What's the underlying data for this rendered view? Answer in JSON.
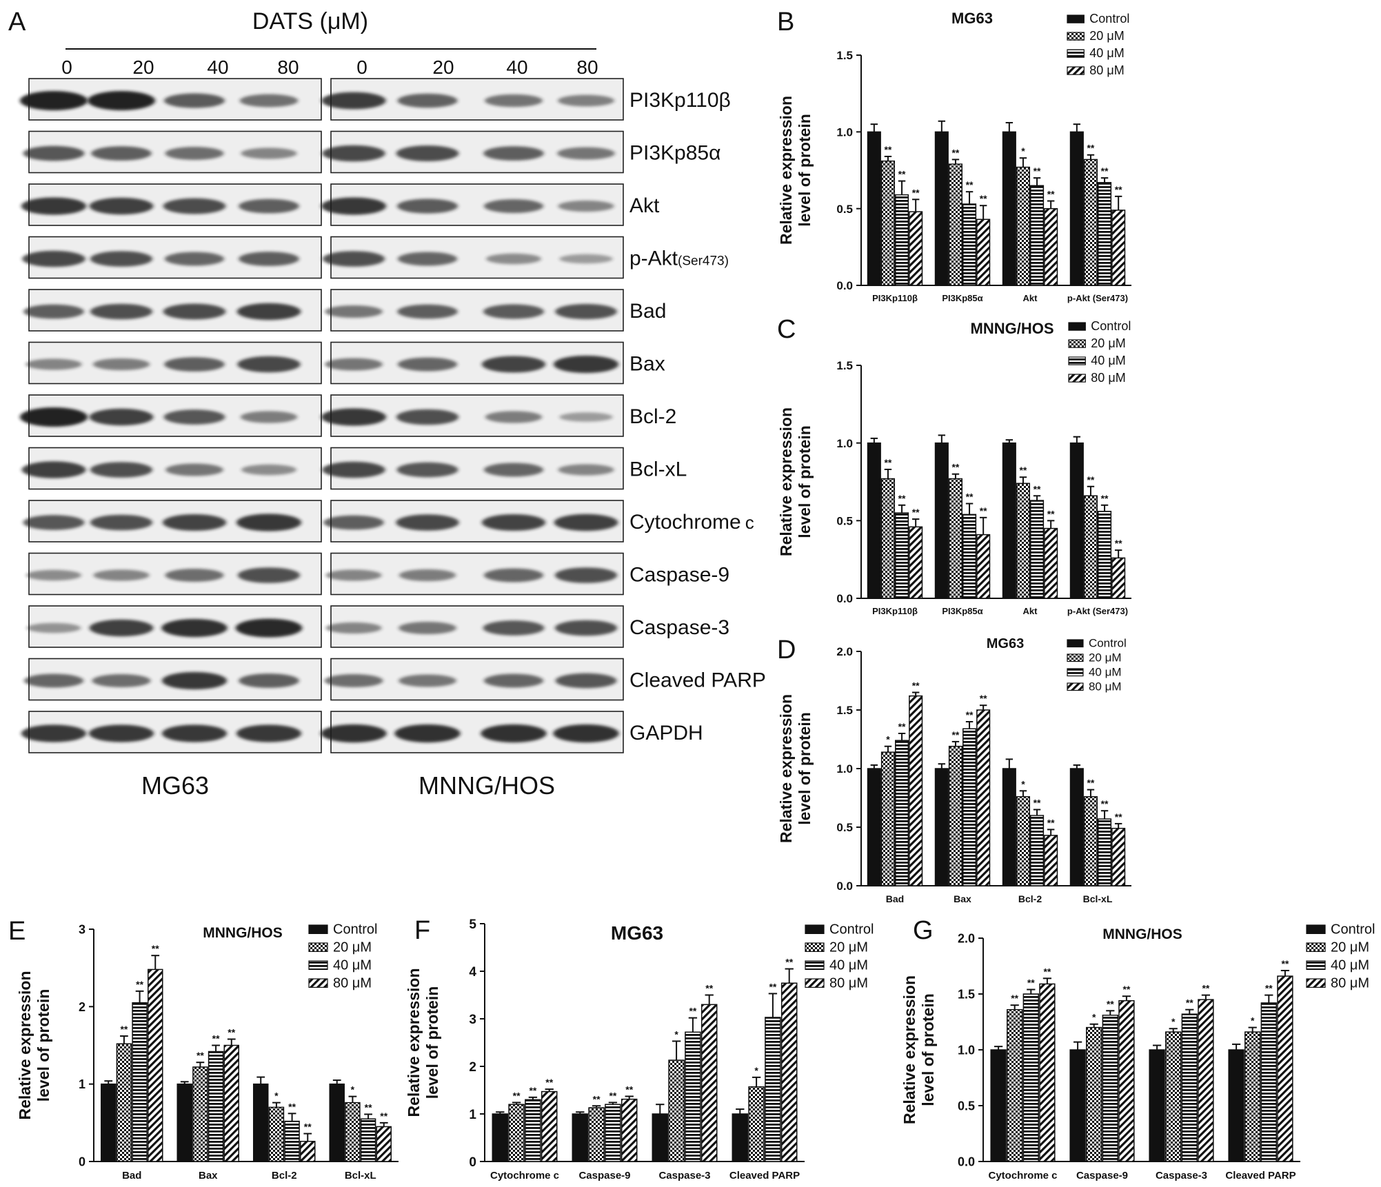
{
  "colors": {
    "ink": "#111111",
    "frame": "#222222",
    "blot_bg": "#eeeeee",
    "band": "#1a1a1a"
  },
  "panel_a": {
    "label": "A",
    "treatment": "DATS (μM)",
    "doses": [
      "0",
      "20",
      "40",
      "80",
      "0",
      "20",
      "40",
      "80"
    ],
    "cell_lines": [
      "MG63",
      "MNNG/HOS"
    ],
    "proteins": [
      {
        "name": "PI3Kp110β",
        "sub": "",
        "mg63": [
          1.0,
          1.0,
          0.62,
          0.48
        ],
        "hos": [
          0.82,
          0.58,
          0.46,
          0.38
        ]
      },
      {
        "name": "PI3Kp85α",
        "sub": "",
        "mg63": [
          0.65,
          0.6,
          0.5,
          0.35
        ],
        "hos": [
          0.75,
          0.72,
          0.6,
          0.45
        ]
      },
      {
        "name": "Akt",
        "sub": "",
        "mg63": [
          0.85,
          0.8,
          0.72,
          0.6
        ],
        "hos": [
          0.85,
          0.62,
          0.55,
          0.35
        ]
      },
      {
        "name": "p-Akt",
        "sub": "(Ser473)",
        "mg63": [
          0.75,
          0.7,
          0.55,
          0.6
        ],
        "hos": [
          0.7,
          0.55,
          0.3,
          0.2
        ]
      },
      {
        "name": "Bad",
        "sub": "",
        "mg63": [
          0.6,
          0.7,
          0.72,
          0.8
        ],
        "hos": [
          0.45,
          0.6,
          0.62,
          0.68
        ]
      },
      {
        "name": "Bax",
        "sub": "",
        "mg63": [
          0.35,
          0.4,
          0.6,
          0.75
        ],
        "hos": [
          0.45,
          0.55,
          0.78,
          0.85
        ]
      },
      {
        "name": "Bcl-2",
        "sub": "",
        "mg63": [
          1.0,
          0.8,
          0.65,
          0.4
        ],
        "hos": [
          0.85,
          0.7,
          0.4,
          0.2
        ]
      },
      {
        "name": "Bcl-xL",
        "sub": "",
        "mg63": [
          0.8,
          0.7,
          0.45,
          0.3
        ],
        "hos": [
          0.75,
          0.65,
          0.55,
          0.35
        ]
      },
      {
        "name": "Cytochrome",
        "sub": "c",
        "mg63": [
          0.65,
          0.7,
          0.78,
          0.85
        ],
        "hos": [
          0.6,
          0.75,
          0.78,
          0.8
        ]
      },
      {
        "name": "Caspase-9",
        "sub": "",
        "mg63": [
          0.3,
          0.35,
          0.5,
          0.7
        ],
        "hos": [
          0.35,
          0.4,
          0.55,
          0.7
        ]
      },
      {
        "name": "Caspase-3",
        "sub": "",
        "mg63": [
          0.25,
          0.8,
          0.9,
          0.95
        ],
        "hos": [
          0.35,
          0.45,
          0.65,
          0.7
        ]
      },
      {
        "name": "Cleaved PARP",
        "sub": "",
        "mg63": [
          0.55,
          0.5,
          0.85,
          0.6
        ],
        "hos": [
          0.5,
          0.45,
          0.55,
          0.65
        ]
      },
      {
        "name": "GAPDH",
        "sub": "",
        "mg63": [
          0.85,
          0.85,
          0.85,
          0.85
        ],
        "hos": [
          0.9,
          0.9,
          0.9,
          0.9
        ]
      }
    ]
  },
  "chart_data": [
    {
      "panel": "B",
      "type": "bar",
      "title": "MG63",
      "ylabel": [
        "Relative expression",
        "level of protein"
      ],
      "ylim": [
        0,
        1.5
      ],
      "yticks": [
        "0.0",
        "0.5",
        "1.0",
        "1.5"
      ],
      "categories": [
        "PI3Kp110β",
        "PI3Kp85α",
        "Akt",
        "p-Akt (Ser473)"
      ],
      "legend": [
        "Control",
        "20 μM",
        "40 μM",
        "80 μM"
      ],
      "series": [
        {
          "name": "Control",
          "values": [
            1.0,
            1.0,
            1.0,
            1.0
          ],
          "errors": [
            0.05,
            0.07,
            0.06,
            0.05
          ],
          "stars": [
            "",
            "",
            "",
            ""
          ]
        },
        {
          "name": "20 μM",
          "values": [
            0.81,
            0.79,
            0.77,
            0.82
          ],
          "errors": [
            0.03,
            0.03,
            0.06,
            0.03
          ],
          "stars": [
            "**",
            "**",
            "*",
            "**"
          ]
        },
        {
          "name": "40 μM",
          "values": [
            0.59,
            0.53,
            0.65,
            0.67
          ],
          "errors": [
            0.09,
            0.08,
            0.05,
            0.03
          ],
          "stars": [
            "**",
            "**",
            "**",
            "**"
          ]
        },
        {
          "name": "80 μM",
          "values": [
            0.48,
            0.43,
            0.5,
            0.49
          ],
          "errors": [
            0.08,
            0.09,
            0.05,
            0.09
          ],
          "stars": [
            "**",
            "**",
            "**",
            "**"
          ]
        }
      ]
    },
    {
      "panel": "C",
      "type": "bar",
      "title": "MNNG/HOS",
      "ylabel": [
        "Relative expression",
        "level of protein"
      ],
      "ylim": [
        0,
        1.5
      ],
      "yticks": [
        "0.0",
        "0.5",
        "1.0",
        "1.5"
      ],
      "categories": [
        "PI3Kp110β",
        "PI3Kp85α",
        "Akt",
        "p-Akt (Ser473)"
      ],
      "legend": [
        "Control",
        "20 μM",
        "40 μM",
        "80 μM"
      ],
      "series": [
        {
          "name": "Control",
          "values": [
            1.0,
            1.0,
            1.0,
            1.0
          ],
          "errors": [
            0.03,
            0.05,
            0.02,
            0.04
          ],
          "stars": [
            "",
            "",
            "",
            ""
          ]
        },
        {
          "name": "20 μM",
          "values": [
            0.77,
            0.77,
            0.74,
            0.66
          ],
          "errors": [
            0.06,
            0.03,
            0.04,
            0.06
          ],
          "stars": [
            "**",
            "**",
            "**",
            "**"
          ]
        },
        {
          "name": "40 μM",
          "values": [
            0.55,
            0.54,
            0.63,
            0.56
          ],
          "errors": [
            0.05,
            0.07,
            0.03,
            0.04
          ],
          "stars": [
            "**",
            "**",
            "**",
            "**"
          ]
        },
        {
          "name": "80 μM",
          "values": [
            0.46,
            0.41,
            0.45,
            0.26
          ],
          "errors": [
            0.05,
            0.11,
            0.05,
            0.05
          ],
          "stars": [
            "**",
            "**",
            "**",
            "**"
          ]
        }
      ]
    },
    {
      "panel": "D",
      "type": "bar",
      "title": "MG63",
      "ylabel": [
        "Relative expression",
        "level of protein"
      ],
      "ylim": [
        0,
        2.0
      ],
      "yticks": [
        "0.0",
        "0.5",
        "1.0",
        "1.5",
        "2.0"
      ],
      "categories": [
        "Bad",
        "Bax",
        "Bcl-2",
        "Bcl-xL"
      ],
      "legend": [
        "Control",
        "20 μM",
        "40 μM",
        "80 μM"
      ],
      "series": [
        {
          "name": "Control",
          "values": [
            1.0,
            1.0,
            1.0,
            1.0
          ],
          "errors": [
            0.03,
            0.04,
            0.08,
            0.03
          ],
          "stars": [
            "",
            "",
            "",
            ""
          ]
        },
        {
          "name": "20 μM",
          "values": [
            1.14,
            1.19,
            0.76,
            0.76
          ],
          "errors": [
            0.05,
            0.04,
            0.05,
            0.06
          ],
          "stars": [
            "*",
            "**",
            "*",
            "**"
          ]
        },
        {
          "name": "40 μM",
          "values": [
            1.24,
            1.34,
            0.6,
            0.57
          ],
          "errors": [
            0.06,
            0.06,
            0.05,
            0.07
          ],
          "stars": [
            "**",
            "**",
            "**",
            "**"
          ]
        },
        {
          "name": "80 μM",
          "values": [
            1.62,
            1.5,
            0.43,
            0.49
          ],
          "errors": [
            0.03,
            0.04,
            0.05,
            0.04
          ],
          "stars": [
            "**",
            "**",
            "**",
            "**"
          ]
        }
      ]
    },
    {
      "panel": "E",
      "type": "bar",
      "title": "MNNG/HOS",
      "ylabel": [
        "Relative expression",
        "level of protein"
      ],
      "ylim": [
        0,
        3
      ],
      "yticks": [
        "0",
        "1",
        "2",
        "3"
      ],
      "categories": [
        "Bad",
        "Bax",
        "Bcl-2",
        "Bcl-xL"
      ],
      "legend": [
        "Control",
        "20 μM",
        "40 μM",
        "80 μM"
      ],
      "series": [
        {
          "name": "Control",
          "values": [
            1.0,
            1.0,
            1.0,
            1.0
          ],
          "errors": [
            0.04,
            0.03,
            0.09,
            0.05
          ],
          "stars": [
            "",
            "",
            "",
            ""
          ]
        },
        {
          "name": "20 μM",
          "values": [
            1.52,
            1.22,
            0.7,
            0.76
          ],
          "errors": [
            0.1,
            0.06,
            0.06,
            0.08
          ],
          "stars": [
            "**",
            "**",
            "*",
            "*"
          ]
        },
        {
          "name": "40 μM",
          "values": [
            2.05,
            1.42,
            0.52,
            0.55
          ],
          "errors": [
            0.15,
            0.08,
            0.1,
            0.06
          ],
          "stars": [
            "**",
            "**",
            "**",
            "**"
          ]
        },
        {
          "name": "80 μM",
          "values": [
            2.48,
            1.5,
            0.26,
            0.45
          ],
          "errors": [
            0.18,
            0.08,
            0.1,
            0.05
          ],
          "stars": [
            "**",
            "**",
            "**",
            "**"
          ]
        }
      ]
    },
    {
      "panel": "F",
      "type": "bar",
      "title": "MG63",
      "ylabel": [
        "Relative expression",
        "level of protein"
      ],
      "ylim": [
        0,
        5
      ],
      "yticks": [
        "0",
        "1",
        "2",
        "3",
        "4",
        "5"
      ],
      "categories": [
        "Cytochrome c",
        "Caspase-9",
        "Caspase-3",
        "Cleaved PARP"
      ],
      "legend": [
        "Control",
        "20 μM",
        "40 μM",
        "80 μM"
      ],
      "series": [
        {
          "name": "Control",
          "values": [
            1.0,
            1.0,
            1.0,
            1.0
          ],
          "errors": [
            0.04,
            0.04,
            0.2,
            0.1
          ],
          "stars": [
            "",
            "",
            "",
            ""
          ]
        },
        {
          "name": "20 μM",
          "values": [
            1.2,
            1.13,
            2.13,
            1.57
          ],
          "errors": [
            0.04,
            0.04,
            0.4,
            0.2
          ],
          "stars": [
            "**",
            "**",
            "*",
            "*"
          ]
        },
        {
          "name": "40 μM",
          "values": [
            1.3,
            1.2,
            2.72,
            3.03
          ],
          "errors": [
            0.05,
            0.04,
            0.3,
            0.5
          ],
          "stars": [
            "**",
            "**",
            "**",
            "**"
          ]
        },
        {
          "name": "80 μM",
          "values": [
            1.47,
            1.31,
            3.3,
            3.75
          ],
          "errors": [
            0.05,
            0.06,
            0.2,
            0.3
          ],
          "stars": [
            "**",
            "**",
            "**",
            "**"
          ]
        }
      ]
    },
    {
      "panel": "G",
      "type": "bar",
      "title": "MNNG/HOS",
      "ylabel": [
        "Relative expression",
        "level of protein"
      ],
      "ylim": [
        0,
        2.0
      ],
      "yticks": [
        "0.0",
        "0.5",
        "1.0",
        "1.5",
        "2.0"
      ],
      "categories": [
        "Cytochrome c",
        "Caspase-9",
        "Caspase-3",
        "Cleaved PARP"
      ],
      "legend": [
        "Control",
        "20 μM",
        "40 μM",
        "80 μM"
      ],
      "series": [
        {
          "name": "Control",
          "values": [
            1.0,
            1.0,
            1.0,
            1.0
          ],
          "errors": [
            0.03,
            0.07,
            0.04,
            0.05
          ],
          "stars": [
            "",
            "",
            "",
            ""
          ]
        },
        {
          "name": "20 μM",
          "values": [
            1.36,
            1.2,
            1.16,
            1.16
          ],
          "errors": [
            0.04,
            0.03,
            0.03,
            0.04
          ],
          "stars": [
            "**",
            "*",
            "*",
            "*"
          ]
        },
        {
          "name": "40 μM",
          "values": [
            1.5,
            1.31,
            1.32,
            1.42
          ],
          "errors": [
            0.04,
            0.04,
            0.04,
            0.07
          ],
          "stars": [
            "**",
            "**",
            "**",
            "**"
          ]
        },
        {
          "name": "80 μM",
          "values": [
            1.59,
            1.44,
            1.45,
            1.66
          ],
          "errors": [
            0.05,
            0.04,
            0.04,
            0.05
          ],
          "stars": [
            "**",
            "**",
            "**",
            "**"
          ]
        }
      ]
    }
  ]
}
